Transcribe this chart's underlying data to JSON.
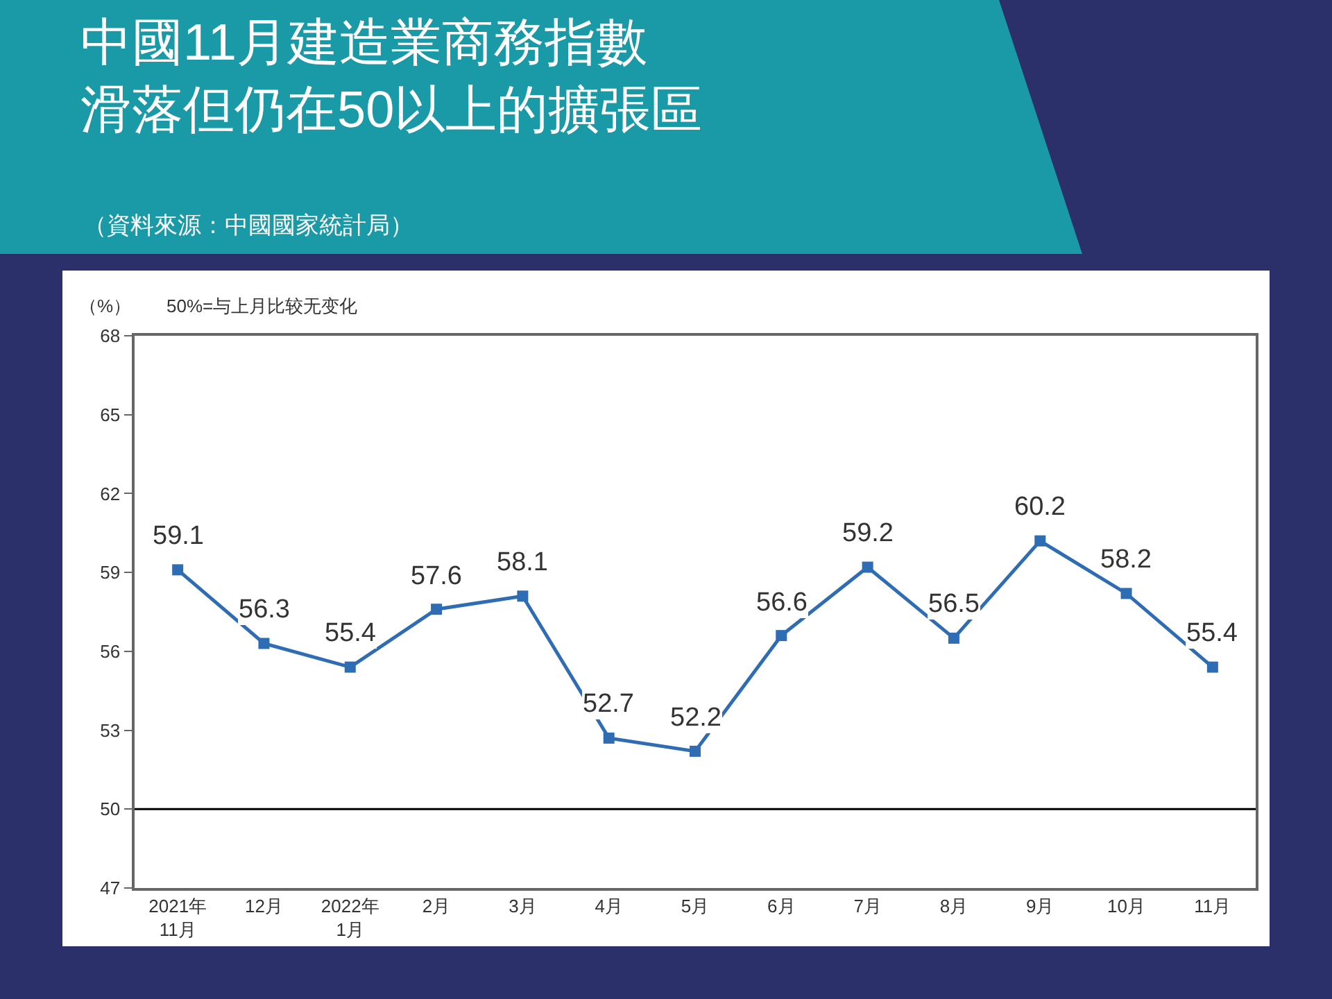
{
  "chart_data": {
    "type": "line",
    "title": "中國11月建造業商務指數滑落但仍在50以上的擴張區",
    "subtitle": "（資料來源：中國國家統計局）",
    "ylabel": "（%）",
    "annotations": [
      "50%=与上月比较无变化"
    ],
    "categories": [
      "2021年\n11月",
      "12月",
      "2022年\n1月",
      "2月",
      "3月",
      "4月",
      "5月",
      "6月",
      "7月",
      "8月",
      "9月",
      "10月",
      "11月"
    ],
    "series": [
      {
        "color": "#2e6db4",
        "values": [
          59.1,
          56.3,
          55.4,
          57.6,
          58.1,
          52.7,
          52.2,
          56.6,
          59.2,
          56.5,
          60.2,
          58.2,
          55.4
        ]
      }
    ],
    "ylim": [
      47,
      68
    ],
    "yticks": [
      47,
      50,
      53,
      56,
      59,
      62,
      65,
      68
    ],
    "ref_lines": [
      {
        "axis": "y",
        "value": 50,
        "color": "#000000"
      }
    ],
    "data_labels": true,
    "marker": "square",
    "line_style": "solid"
  }
}
